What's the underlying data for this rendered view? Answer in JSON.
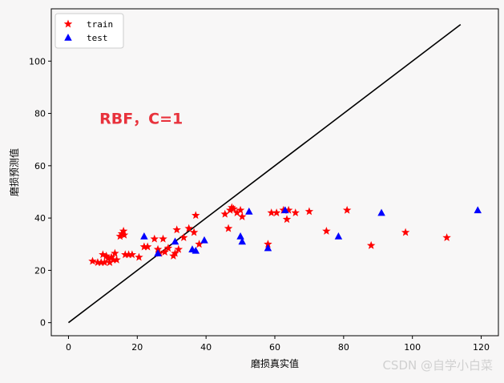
{
  "chart_data": {
    "type": "scatter",
    "xlabel": "磨损真实值",
    "ylabel": "磨损预测值",
    "xlim": [
      -5,
      125
    ],
    "ylim": [
      -5,
      120
    ],
    "xticks": [
      0,
      20,
      40,
      60,
      80,
      100,
      120
    ],
    "yticks": [
      0,
      20,
      40,
      60,
      80,
      100
    ],
    "legend_position": "top-left",
    "annotation": {
      "text": "RBF，C=1",
      "x": 9,
      "y": 76
    },
    "reference_line": {
      "x": [
        0,
        114
      ],
      "y": [
        0,
        114
      ],
      "color": "#000000"
    },
    "series": [
      {
        "name": "train",
        "marker": "star",
        "color": "#ff0000",
        "points": [
          [
            7,
            23.5
          ],
          [
            8.5,
            23
          ],
          [
            9.5,
            23
          ],
          [
            10,
            26
          ],
          [
            10.5,
            23
          ],
          [
            11,
            25.5
          ],
          [
            11.5,
            24.5
          ],
          [
            12,
            23
          ],
          [
            12.5,
            25
          ],
          [
            13,
            24
          ],
          [
            13.5,
            26.5
          ],
          [
            14,
            24
          ],
          [
            15,
            33
          ],
          [
            15.5,
            34
          ],
          [
            16,
            35
          ],
          [
            16.2,
            33.5
          ],
          [
            16.5,
            26
          ],
          [
            17.5,
            26
          ],
          [
            18.5,
            26
          ],
          [
            20.5,
            25
          ],
          [
            22,
            29
          ],
          [
            23,
            29
          ],
          [
            25,
            32
          ],
          [
            26,
            28
          ],
          [
            26.5,
            26.5
          ],
          [
            27.5,
            32
          ],
          [
            28,
            27
          ],
          [
            29,
            28.5
          ],
          [
            30.5,
            25.5
          ],
          [
            31,
            26.5
          ],
          [
            31.5,
            35.5
          ],
          [
            32,
            28
          ],
          [
            33.5,
            32.5
          ],
          [
            35,
            36
          ],
          [
            36.5,
            34.5
          ],
          [
            37,
            41
          ],
          [
            38,
            30
          ],
          [
            45.5,
            41.5
          ],
          [
            46.5,
            36
          ],
          [
            47,
            43
          ],
          [
            47.5,
            44
          ],
          [
            48,
            43.5
          ],
          [
            49,
            42
          ],
          [
            50,
            43
          ],
          [
            50.5,
            40.5
          ],
          [
            58,
            30
          ],
          [
            59,
            42
          ],
          [
            60.5,
            42
          ],
          [
            62.5,
            43
          ],
          [
            63.5,
            39.5
          ],
          [
            64,
            43
          ],
          [
            66,
            42
          ],
          [
            70,
            42.5
          ],
          [
            75,
            35
          ],
          [
            81,
            43
          ],
          [
            88,
            29.5
          ],
          [
            98,
            34.5
          ],
          [
            110,
            32.5
          ]
        ]
      },
      {
        "name": "test",
        "marker": "triangle",
        "color": "#0000ff",
        "points": [
          [
            22,
            33
          ],
          [
            26,
            26.5
          ],
          [
            31,
            31
          ],
          [
            36,
            28
          ],
          [
            37,
            27.5
          ],
          [
            39.5,
            31.5
          ],
          [
            50,
            33
          ],
          [
            50.5,
            31
          ],
          [
            52.5,
            42.5
          ],
          [
            58,
            28.5
          ],
          [
            63,
            43
          ],
          [
            78.5,
            33
          ],
          [
            91,
            42
          ],
          [
            119,
            43
          ]
        ]
      }
    ]
  },
  "watermark": "CSDN @自学小白菜"
}
